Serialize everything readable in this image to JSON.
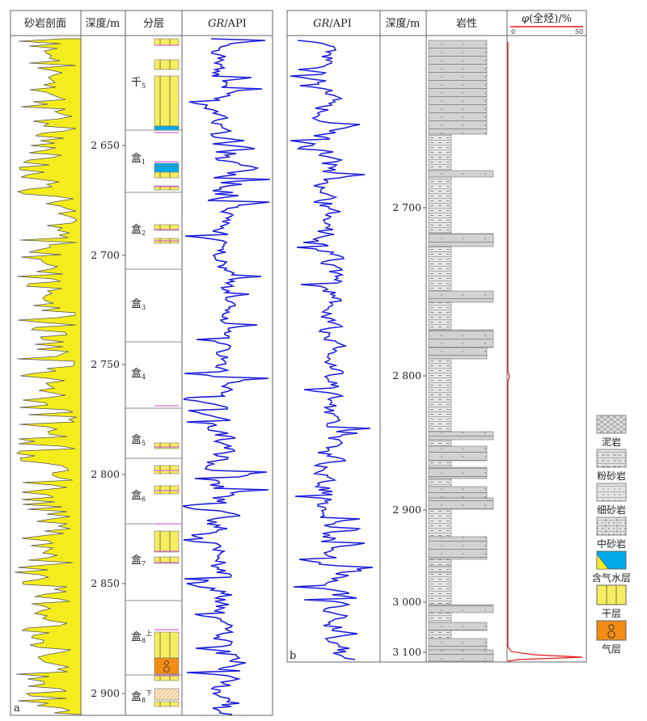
{
  "panel_a": {
    "label": "a",
    "headers": {
      "sandstone_profile": "砂岩剖面",
      "depth": "深度/m",
      "layering": "分层",
      "gr_italic": "GR",
      "gr_unit": "/API"
    },
    "depth_ticks": [
      "2 650",
      "2 700",
      "2 750",
      "2 800",
      "2 850",
      "2 900"
    ],
    "layers": [
      {
        "base": "千",
        "sub": "5",
        "sup": ""
      },
      {
        "base": "盒",
        "sub": "1",
        "sup": ""
      },
      {
        "base": "盒",
        "sub": "2",
        "sup": ""
      },
      {
        "base": "盒",
        "sub": "3",
        "sup": ""
      },
      {
        "base": "盒",
        "sub": "4",
        "sup": ""
      },
      {
        "base": "盒",
        "sub": "5",
        "sup": ""
      },
      {
        "base": "盒",
        "sub": "6",
        "sup": ""
      },
      {
        "base": "盒",
        "sub": "7",
        "sup": ""
      },
      {
        "base": "盒",
        "sub": "8",
        "sup": "上"
      },
      {
        "base": "盒",
        "sub": "8",
        "sup": "下"
      }
    ]
  },
  "panel_b": {
    "label": "b",
    "headers": {
      "gr_italic": "GR",
      "gr_unit": "/API",
      "depth": "深度/m",
      "lithology": "岩性",
      "phi_symbol": "φ",
      "phi_label": "(全烃)/%",
      "phi_min": "0",
      "phi_max": "50"
    },
    "depth_ticks": [
      "2 700",
      "2 800",
      "2 900",
      "3 000",
      "3 100"
    ]
  },
  "legend": [
    {
      "key": "mudstone",
      "label": "泥岩"
    },
    {
      "key": "siltstone",
      "label": "粉砂岩"
    },
    {
      "key": "fine_sandstone",
      "label": "细砂岩"
    },
    {
      "key": "medium_sandstone",
      "label": "中砂岩"
    },
    {
      "key": "gas_water",
      "label": "含气水层"
    },
    {
      "key": "dry",
      "label": "干层"
    },
    {
      "key": "gas",
      "label": "气层"
    }
  ],
  "colors": {
    "gr_curve": "#1a1adc",
    "sand": "#f5ec1e",
    "gas_water": "#00a8e8",
    "gas": "#f28c14",
    "hydrocarbon": "#e01818",
    "lithology_fill": "#cfcfcf"
  }
}
